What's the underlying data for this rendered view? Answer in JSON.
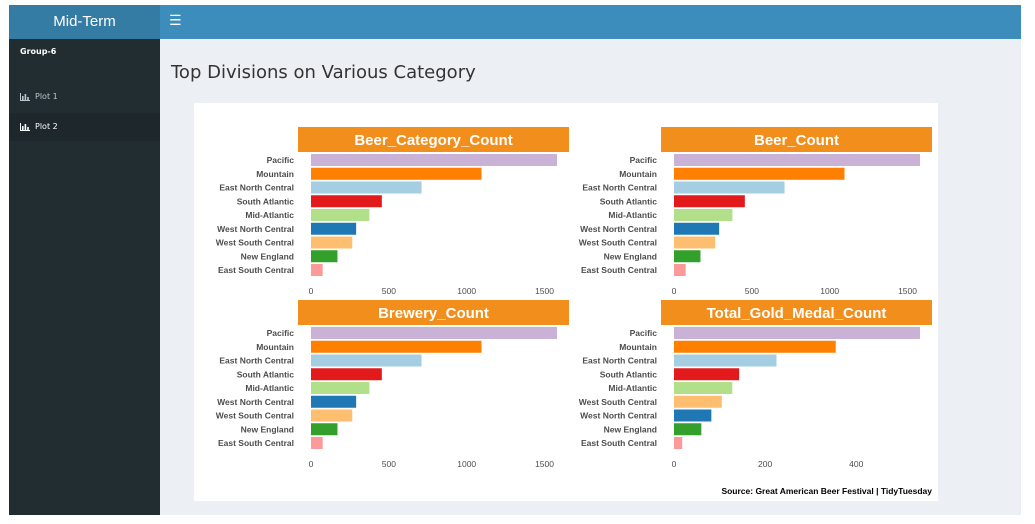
{
  "app": {
    "title": "Mid-Term"
  },
  "topbar": {
    "toggle_icon": "☰"
  },
  "sidebar": {
    "user": "Group-6",
    "items": [
      {
        "label": "Plot 1",
        "icon": "bar-chart-icon",
        "active": false
      },
      {
        "label": "Plot 2",
        "icon": "bar-chart-icon",
        "active": true
      }
    ]
  },
  "page": {
    "title": "Top Divisions on Various Category"
  },
  "plot": {
    "source": "Source:  Great American Beer Festival | TidyTuesday"
  },
  "colors": {
    "header_bg": "#3c8dbc",
    "logo_bg": "#357ca5",
    "sidebar_bg": "#222d32",
    "panel_strip": "#f28e1c",
    "Pacific": "#cab2d6",
    "Mountain": "#ff7f00",
    "East North Central": "#a6cee3",
    "South Atlantic": "#e31a1c",
    "Mid-Atlantic": "#b2df8a",
    "West North Central": "#1f78b4",
    "West South Central": "#fdbf6f",
    "New England": "#33a02c",
    "East South Central": "#fb9a99"
  },
  "chart_data": [
    {
      "type": "bar",
      "title": "Beer_Category_Count",
      "orientation": "horizontal",
      "categories": [
        "Pacific",
        "Mountain",
        "East North Central",
        "South Atlantic",
        "Mid-Atlantic",
        "West North Central",
        "West South Central",
        "New England",
        "East South Central"
      ],
      "values": [
        1580,
        1095,
        710,
        455,
        375,
        290,
        265,
        170,
        75
      ],
      "xticks": [
        0,
        500,
        1000,
        1500
      ],
      "xlim": [
        0,
        1580
      ],
      "xlabel": "",
      "ylabel": ""
    },
    {
      "type": "bar",
      "title": "Beer_Count",
      "orientation": "horizontal",
      "categories": [
        "Pacific",
        "Mountain",
        "East North Central",
        "South Atlantic",
        "Mid-Atlantic",
        "West North Central",
        "West South Central",
        "New England",
        "East South Central"
      ],
      "values": [
        1580,
        1095,
        710,
        455,
        375,
        290,
        265,
        170,
        75
      ],
      "xticks": [
        0,
        500,
        1000,
        1500
      ],
      "xlim": [
        0,
        1580
      ],
      "xlabel": "",
      "ylabel": ""
    },
    {
      "type": "bar",
      "title": "Brewery_Count",
      "orientation": "horizontal",
      "categories": [
        "Pacific",
        "Mountain",
        "East North Central",
        "South Atlantic",
        "Mid-Atlantic",
        "West North Central",
        "West South Central",
        "New England",
        "East South Central"
      ],
      "values": [
        1580,
        1095,
        710,
        455,
        375,
        290,
        265,
        170,
        75
      ],
      "xticks": [
        0,
        500,
        1000,
        1500
      ],
      "xlim": [
        0,
        1580
      ],
      "xlabel": "",
      "ylabel": ""
    },
    {
      "type": "bar",
      "title": "Total_Gold_Medal_Count",
      "orientation": "horizontal",
      "categories": [
        "Pacific",
        "Mountain",
        "East North Central",
        "South Atlantic",
        "Mid-Atlantic",
        "West South Central",
        "West North Central",
        "New England",
        "East South Central"
      ],
      "values": [
        540,
        355,
        225,
        143,
        128,
        105,
        82,
        60,
        18
      ],
      "xticks": [
        0,
        200,
        400
      ],
      "xlim": [
        0,
        540
      ],
      "xlabel": "",
      "ylabel": ""
    }
  ]
}
